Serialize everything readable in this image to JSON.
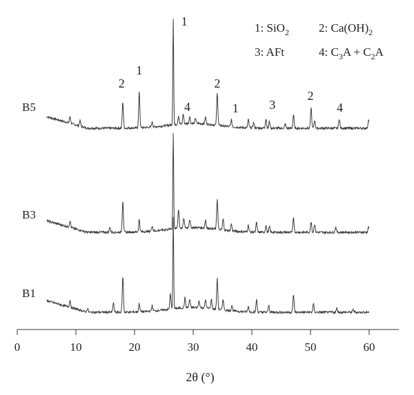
{
  "chart_data": {
    "type": "line",
    "title": "",
    "xlabel": "2θ (°)",
    "ylabel": "",
    "xlim": [
      0,
      65
    ],
    "x_ticks": [
      0,
      10,
      20,
      30,
      40,
      50,
      60
    ],
    "x_tick_labels": [
      "0",
      "10",
      "20",
      "30",
      "40",
      "50",
      "60"
    ],
    "y_ticks_shown": false,
    "grid": false,
    "legend_position": "top-right",
    "legend": [
      {
        "key": "1",
        "label": "SiO",
        "sub": "2"
      },
      {
        "key": "2",
        "label": "Ca(OH)",
        "sub": "2"
      },
      {
        "key": "3",
        "label": "AFt",
        "sub": ""
      },
      {
        "key": "4",
        "label": "C",
        "sub": "3",
        "label2": "A + C",
        "sub2": "2",
        "label3": "A"
      }
    ],
    "legend_text": [
      "1: SiO2",
      "2: Ca(OH)2",
      "3: AFt",
      "4: C3A + C2A"
    ],
    "series": [
      {
        "name": "B5",
        "x_range": [
          5,
          60
        ],
        "peaks": [
          [
            9.0,
            10
          ],
          [
            10.7,
            8
          ],
          [
            18.0,
            38
          ],
          [
            20.8,
            52
          ],
          [
            23.0,
            7
          ],
          [
            26.6,
            155
          ],
          [
            27.5,
            12
          ],
          [
            28.3,
            14
          ],
          [
            29.4,
            10
          ],
          [
            30.4,
            8
          ],
          [
            32.1,
            10
          ],
          [
            34.1,
            48
          ],
          [
            36.5,
            10
          ],
          [
            39.4,
            12
          ],
          [
            40.3,
            8
          ],
          [
            42.4,
            14
          ],
          [
            43.0,
            10
          ],
          [
            45.7,
            6
          ],
          [
            47.1,
            20
          ],
          [
            50.1,
            30
          ],
          [
            50.7,
            12
          ],
          [
            54.9,
            14
          ],
          [
            59.9,
            12
          ]
        ]
      },
      {
        "name": "B3",
        "x_range": [
          5,
          60
        ],
        "peaks": [
          [
            9.0,
            10
          ],
          [
            15.8,
            8
          ],
          [
            18.0,
            46
          ],
          [
            20.8,
            18
          ],
          [
            23.0,
            8
          ],
          [
            26.6,
            140
          ],
          [
            27.5,
            28
          ],
          [
            28.4,
            14
          ],
          [
            29.4,
            12
          ],
          [
            32.1,
            12
          ],
          [
            34.1,
            44
          ],
          [
            35.1,
            16
          ],
          [
            36.5,
            10
          ],
          [
            39.4,
            10
          ],
          [
            40.8,
            14
          ],
          [
            42.4,
            10
          ],
          [
            43.0,
            8
          ],
          [
            47.1,
            22
          ],
          [
            50.1,
            16
          ],
          [
            50.7,
            12
          ],
          [
            54.3,
            8
          ],
          [
            59.9,
            8
          ]
        ]
      },
      {
        "name": "B1",
        "x_range": [
          5,
          60
        ],
        "peaks": [
          [
            9.0,
            10
          ],
          [
            12.0,
            6
          ],
          [
            16.4,
            14
          ],
          [
            18.0,
            52
          ],
          [
            20.8,
            12
          ],
          [
            23.0,
            8
          ],
          [
            26.1,
            22
          ],
          [
            26.6,
            134
          ],
          [
            28.6,
            14
          ],
          [
            29.4,
            12
          ],
          [
            31.0,
            10
          ],
          [
            32.1,
            12
          ],
          [
            33.1,
            14
          ],
          [
            34.1,
            44
          ],
          [
            35.1,
            16
          ],
          [
            36.6,
            8
          ],
          [
            39.4,
            8
          ],
          [
            40.8,
            18
          ],
          [
            42.9,
            10
          ],
          [
            47.1,
            26
          ],
          [
            50.5,
            12
          ],
          [
            54.5,
            6
          ],
          [
            57.3,
            4
          ]
        ]
      }
    ],
    "peak_labels": [
      {
        "text": "2",
        "x": 17.8,
        "series": "B5"
      },
      {
        "text": "1",
        "x": 20.8,
        "series": "B5"
      },
      {
        "text": "1",
        "x": 28.0,
        "series": "B5",
        "position": "top"
      },
      {
        "text": "4",
        "x": 29.0,
        "series": "B5"
      },
      {
        "text": "2",
        "x": 34.1,
        "series": "B5"
      },
      {
        "text": "1",
        "x": 37.2,
        "series": "B5"
      },
      {
        "text": "3",
        "x": 43.5,
        "series": "B5"
      },
      {
        "text": "2",
        "x": 50.0,
        "series": "B5"
      },
      {
        "text": "4",
        "x": 55.0,
        "series": "B5"
      }
    ]
  }
}
